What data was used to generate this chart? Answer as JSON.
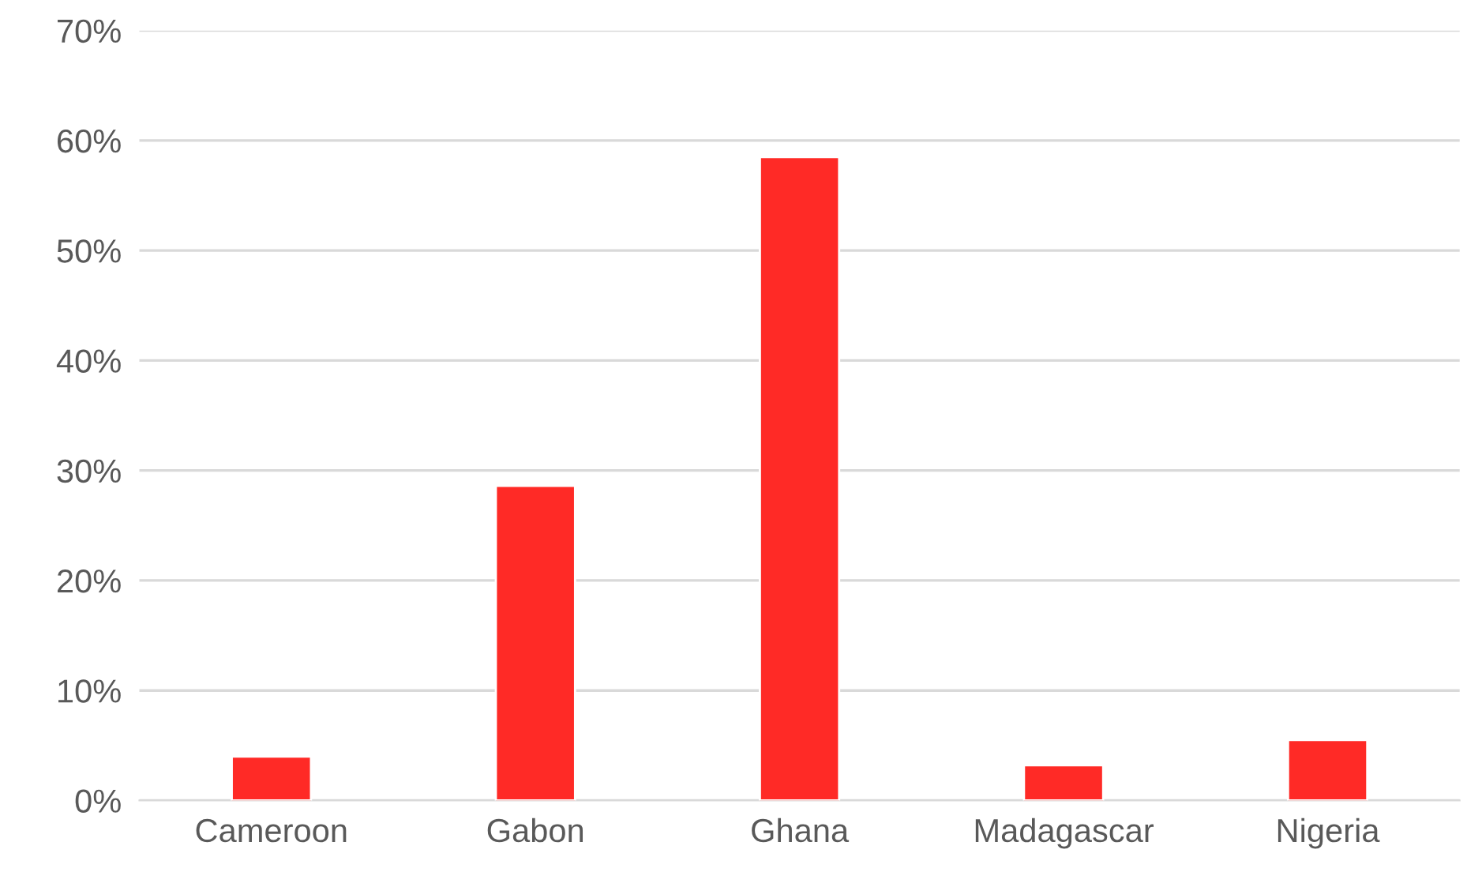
{
  "chart_data": {
    "type": "bar",
    "categories": [
      "Cameroon",
      "Gabon",
      "Ghana",
      "Madagascar",
      "Nigeria"
    ],
    "values": [
      4.0,
      28.6,
      58.5,
      3.2,
      5.5
    ],
    "color": "#ff2a26",
    "ylim": [
      0,
      70
    ],
    "yticks": [
      {
        "value": 0,
        "label": "0%"
      },
      {
        "value": 10,
        "label": "10%"
      },
      {
        "value": 20,
        "label": "20%"
      },
      {
        "value": 30,
        "label": "30%"
      },
      {
        "value": 40,
        "label": "40%"
      },
      {
        "value": 50,
        "label": "50%"
      },
      {
        "value": 60,
        "label": "60%"
      },
      {
        "value": 70,
        "label": "70%"
      }
    ],
    "grid": "y",
    "legend": false
  }
}
